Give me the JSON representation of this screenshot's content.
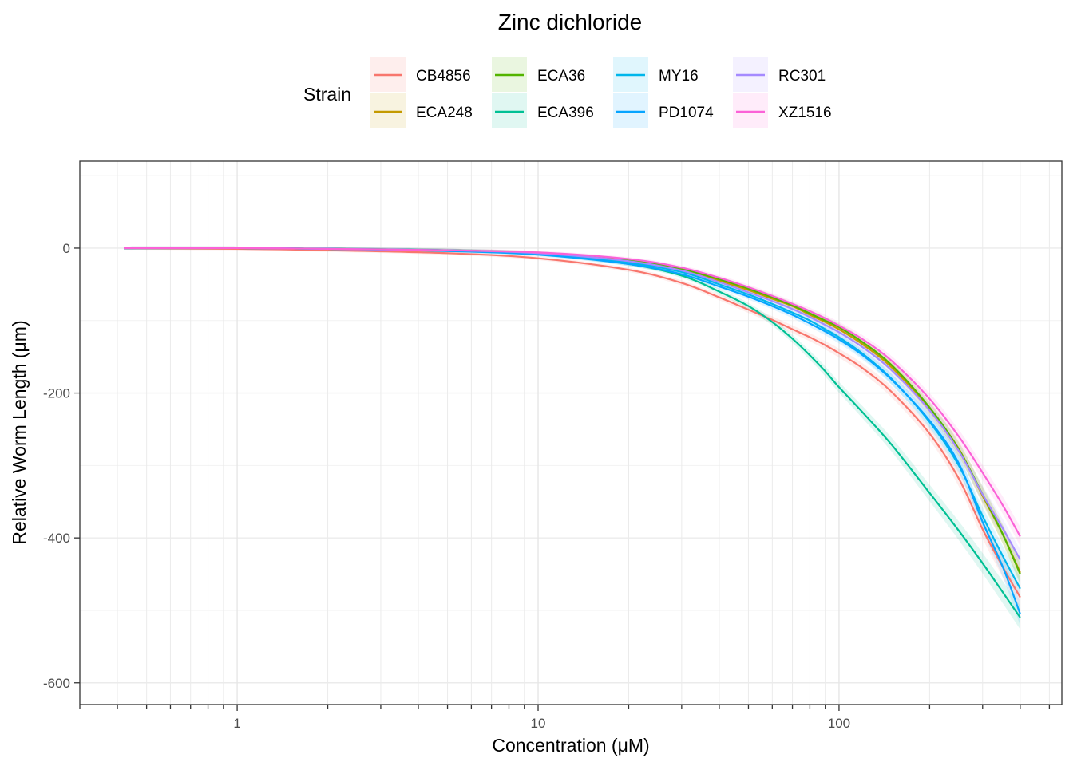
{
  "chart_data": {
    "type": "line",
    "title": "Zinc dichloride",
    "xlabel": "Concentration (μM)",
    "ylabel": "Relative Worm Length (μm)",
    "x_scale": "log10",
    "xlim": [
      0.3,
      550
    ],
    "ylim": [
      -630,
      120
    ],
    "x_ticks": [
      {
        "value": 1,
        "label": "1"
      },
      {
        "value": 10,
        "label": "10"
      },
      {
        "value": 100,
        "label": "100"
      }
    ],
    "y_ticks": [
      {
        "value": 0,
        "label": "0"
      },
      {
        "value": -200,
        "label": "-200"
      },
      {
        "value": -400,
        "label": "-400"
      },
      {
        "value": -600,
        "label": "-600"
      }
    ],
    "grid": true,
    "confidence_bands": true,
    "legend": {
      "title": "Strain",
      "placement": "top",
      "columns": 4,
      "rows": 2
    },
    "x": [
      0.42,
      1,
      2,
      5,
      10,
      20,
      30,
      40,
      50,
      60,
      70,
      80,
      90,
      100,
      120,
      150,
      200,
      250,
      300,
      350,
      400
    ],
    "series": [
      {
        "name": "CB4856",
        "color": "#F8766D",
        "values": [
          0,
          -1,
          -3,
          -7,
          -14,
          -30,
          -48,
          -68,
          -85,
          -99,
          -112,
          -123,
          -134,
          -145,
          -166,
          -199,
          -256,
          -318,
          -388,
          -440,
          -482
        ]
      },
      {
        "name": "ECA248",
        "color": "#C49A00",
        "values": [
          0,
          0,
          -1,
          -3,
          -7,
          -17,
          -30,
          -45,
          -58,
          -70,
          -80,
          -92,
          -102,
          -112,
          -133,
          -165,
          -222,
          -277,
          -342,
          -395,
          -448
        ]
      },
      {
        "name": "ECA36",
        "color": "#53B400",
        "values": [
          0,
          0,
          -1,
          -3,
          -7,
          -17,
          -29,
          -43,
          -56,
          -68,
          -79,
          -90,
          -100,
          -109,
          -130,
          -162,
          -220,
          -278,
          -340,
          -395,
          -450
        ]
      },
      {
        "name": "ECA396",
        "color": "#00C094",
        "values": [
          0,
          0,
          -1,
          -3,
          -8,
          -22,
          -38,
          -60,
          -80,
          -102,
          -125,
          -148,
          -170,
          -192,
          -227,
          -272,
          -338,
          -390,
          -435,
          -475,
          -510
        ]
      },
      {
        "name": "MY16",
        "color": "#00B6EB",
        "values": [
          0,
          0,
          -1,
          -3,
          -8,
          -20,
          -33,
          -50,
          -64,
          -77,
          -89,
          -100,
          -112,
          -123,
          -146,
          -181,
          -240,
          -300,
          -370,
          -425,
          -470
        ]
      },
      {
        "name": "PD1074",
        "color": "#06A4FF",
        "values": [
          0,
          0,
          -1,
          -4,
          -9,
          -22,
          -36,
          -53,
          -67,
          -80,
          -92,
          -104,
          -115,
          -126,
          -148,
          -182,
          -238,
          -297,
          -378,
          -440,
          -505
        ]
      },
      {
        "name": "RC301",
        "color": "#A58AFF",
        "values": [
          0,
          0,
          -1,
          -3,
          -7,
          -18,
          -31,
          -47,
          -61,
          -73,
          -84,
          -95,
          -106,
          -116,
          -137,
          -169,
          -224,
          -280,
          -340,
          -387,
          -430
        ]
      },
      {
        "name": "XZ1516",
        "color": "#FB61D7",
        "values": [
          0,
          0,
          -1,
          -3,
          -6,
          -15,
          -27,
          -41,
          -54,
          -66,
          -77,
          -87,
          -97,
          -107,
          -126,
          -156,
          -208,
          -260,
          -310,
          -355,
          -398
        ]
      }
    ]
  }
}
